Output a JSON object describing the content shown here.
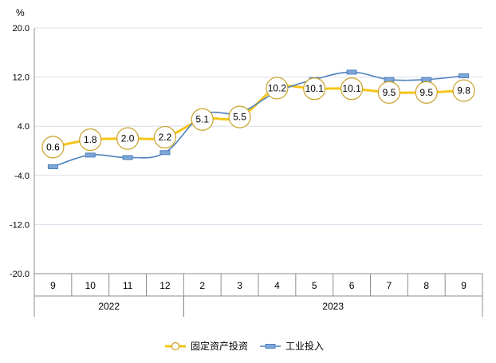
{
  "chart_data": {
    "type": "line",
    "ylabel": "%",
    "ylim": [
      -20,
      20
    ],
    "yticks": [
      "20.0",
      "12.0",
      "4.0",
      "-4.0",
      "-12.0",
      "-20.0"
    ],
    "ytick_values": [
      20,
      12,
      4,
      -4,
      -12,
      -20
    ],
    "categories": [
      "9",
      "10",
      "11",
      "12",
      "2",
      "3",
      "4",
      "5",
      "6",
      "7",
      "8",
      "9"
    ],
    "years": [
      {
        "label": "2022",
        "start": 0,
        "end": 3
      },
      {
        "label": "2023",
        "start": 4,
        "end": 11
      }
    ],
    "grid": true,
    "legend_position": "bottom",
    "series": [
      {
        "name": "固定资产投资",
        "color": "#F5C518",
        "marker": "circle",
        "values": [
          0.6,
          1.8,
          2.0,
          2.2,
          5.1,
          5.5,
          10.2,
          10.1,
          10.1,
          9.5,
          9.5,
          9.8
        ],
        "labels": [
          "0.6",
          "1.8",
          "2.0",
          "2.2",
          "5.1",
          "5.5",
          "10.2",
          "10.1",
          "10.1",
          "9.5",
          "9.5",
          "9.8"
        ]
      },
      {
        "name": "工业投入",
        "color": "#4F81BD",
        "marker": "square",
        "values": [
          -2.6,
          -0.7,
          -1.1,
          -0.3,
          5.8,
          6.2,
          9.6,
          11.6,
          12.8,
          11.6,
          11.6,
          12.2
        ]
      }
    ]
  }
}
